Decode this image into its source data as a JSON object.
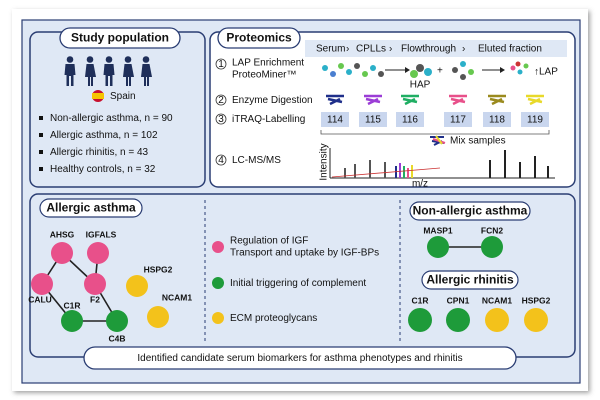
{
  "study_population": {
    "title": "Study population",
    "country": "Spain",
    "groups": [
      "Non-allergic asthma, n = 90",
      "Allergic asthma, n = 102",
      "Allergic rhinitis, n = 43",
      "Healthy controls, n = 32"
    ]
  },
  "proteomics": {
    "title": "Proteomics",
    "workflow": [
      "Serum",
      "CPLLs",
      "Flowthrough",
      "Eluted fraction"
    ],
    "steps": [
      {
        "number": "1",
        "lines": [
          "LAP Enrichment",
          "ProteoMiner™"
        ]
      },
      {
        "number": "2",
        "lines": [
          "Enzyme Digestion"
        ]
      },
      {
        "number": "3",
        "lines": [
          "iTRAQ-Labelling"
        ]
      },
      {
        "number": "4",
        "lines": [
          "LC-MS/MS"
        ]
      }
    ],
    "hap_label": "HAP",
    "lap_label": "↑LAP",
    "tags": [
      "114",
      "115",
      "116",
      "117",
      "118",
      "119"
    ],
    "mix_label": "Mix samples",
    "y_axis": "Intensity",
    "x_axis": "m/z"
  },
  "results": {
    "allergic_asthma": {
      "title": "Allergic asthma",
      "nodes": [
        "AHSG",
        "IGFALS",
        "CALU",
        "F2",
        "HSPG2",
        "NCAM1",
        "C1R",
        "C4B"
      ]
    },
    "legend": [
      {
        "lines": [
          "Regulation of IGF",
          "Transport and uptake by IGF-BPs"
        ]
      },
      {
        "lines": [
          "Initial triggering of complement"
        ]
      },
      {
        "lines": [
          "ECM proteoglycans"
        ]
      }
    ],
    "non_allergic_asthma": {
      "title": "Non-allergic asthma",
      "nodes": [
        "MASP1",
        "FCN2"
      ]
    },
    "allergic_rhinitis": {
      "title": "Allergic rhinitis",
      "nodes": [
        "C1R",
        "CPN1",
        "NCAM1",
        "HSPG2"
      ]
    }
  },
  "footer": "Identified candidate serum biomarkers for asthma phenotypes and rhinitis"
}
